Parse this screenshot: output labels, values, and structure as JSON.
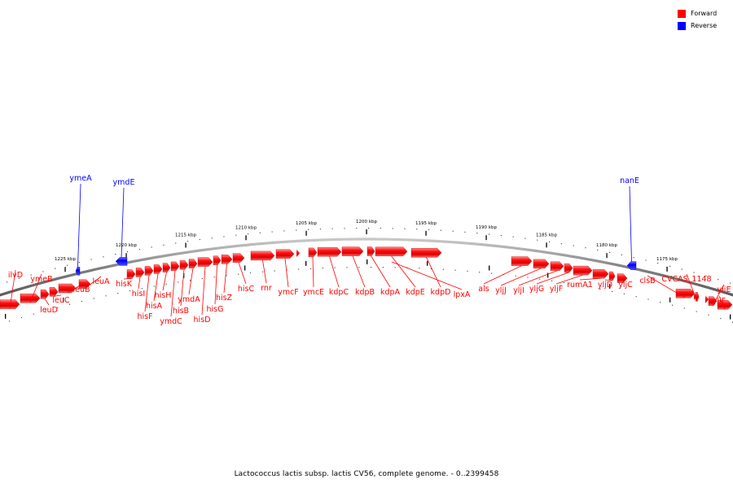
{
  "caption": "Lactococcus lactis subsp. lactis CV56, complete genome. - 0..2399458",
  "legend": [
    {
      "label": "Forward",
      "color": "#ff0000"
    },
    {
      "label": "Reverse",
      "color": "#0000ff"
    }
  ],
  "colors": {
    "forward": "#ff0000",
    "reverse": "#0000ff",
    "backbone": "#808080"
  },
  "axis": {
    "ticks": [
      {
        "label": "1225 kbp",
        "kbp": 1225
      },
      {
        "label": "1220 kbp",
        "kbp": 1220
      },
      {
        "label": "1215 kbp",
        "kbp": 1215
      },
      {
        "label": "1210 kbp",
        "kbp": 1210
      },
      {
        "label": "1205 kbp",
        "kbp": 1205
      },
      {
        "label": "1200 kbp",
        "kbp": 1200
      },
      {
        "label": "1195 kbp",
        "kbp": 1195
      },
      {
        "label": "1190 kbp",
        "kbp": 1190
      },
      {
        "label": "1185 kbp",
        "kbp": 1185
      },
      {
        "label": "1180 kbp",
        "kbp": 1180
      },
      {
        "label": "1175 kbp",
        "kbp": 1175
      }
    ]
  },
  "genes": [
    {
      "name": "ilvD",
      "strand": "forward"
    },
    {
      "name": "ymeB",
      "strand": "forward"
    },
    {
      "name": "leuD",
      "strand": "forward"
    },
    {
      "name": "leuC",
      "strand": "forward"
    },
    {
      "name": "leuB",
      "strand": "forward"
    },
    {
      "name": "leuA",
      "strand": "forward"
    },
    {
      "name": "ymeA",
      "strand": "reverse"
    },
    {
      "name": "ymdE",
      "strand": "reverse"
    },
    {
      "name": "hisK",
      "strand": "forward"
    },
    {
      "name": "hisI",
      "strand": "forward"
    },
    {
      "name": "hisF",
      "strand": "forward"
    },
    {
      "name": "hisA",
      "strand": "forward"
    },
    {
      "name": "hisH",
      "strand": "forward"
    },
    {
      "name": "ymdC",
      "strand": "forward"
    },
    {
      "name": "hisB",
      "strand": "forward"
    },
    {
      "name": "ymdA",
      "strand": "forward"
    },
    {
      "name": "hisD",
      "strand": "forward"
    },
    {
      "name": "hisG",
      "strand": "forward"
    },
    {
      "name": "hisZ",
      "strand": "forward"
    },
    {
      "name": "hisC",
      "strand": "forward"
    },
    {
      "name": "rnr",
      "strand": "forward"
    },
    {
      "name": "ymcF",
      "strand": "forward"
    },
    {
      "name": "ymcE",
      "strand": "forward"
    },
    {
      "name": "kdpC",
      "strand": "forward"
    },
    {
      "name": "kdpB",
      "strand": "forward"
    },
    {
      "name": "kdpA",
      "strand": "forward"
    },
    {
      "name": "kdpE",
      "strand": "forward"
    },
    {
      "name": "kdpD",
      "strand": "forward"
    },
    {
      "name": "lpxA",
      "strand": "forward"
    },
    {
      "name": "als",
      "strand": "forward"
    },
    {
      "name": "yljJ",
      "strand": "forward"
    },
    {
      "name": "yljI",
      "strand": "forward"
    },
    {
      "name": "yljG",
      "strand": "forward"
    },
    {
      "name": "yljF",
      "strand": "forward"
    },
    {
      "name": "rumA1",
      "strand": "forward"
    },
    {
      "name": "yljD",
      "strand": "forward"
    },
    {
      "name": "yljC",
      "strand": "forward"
    },
    {
      "name": "nanE",
      "strand": "reverse"
    },
    {
      "name": "clsB",
      "strand": "forward"
    },
    {
      "name": "CVCAS_1148",
      "strand": "forward"
    },
    {
      "name": "yliE",
      "strand": "forward"
    },
    {
      "name": "yliF",
      "strand": "forward"
    }
  ]
}
